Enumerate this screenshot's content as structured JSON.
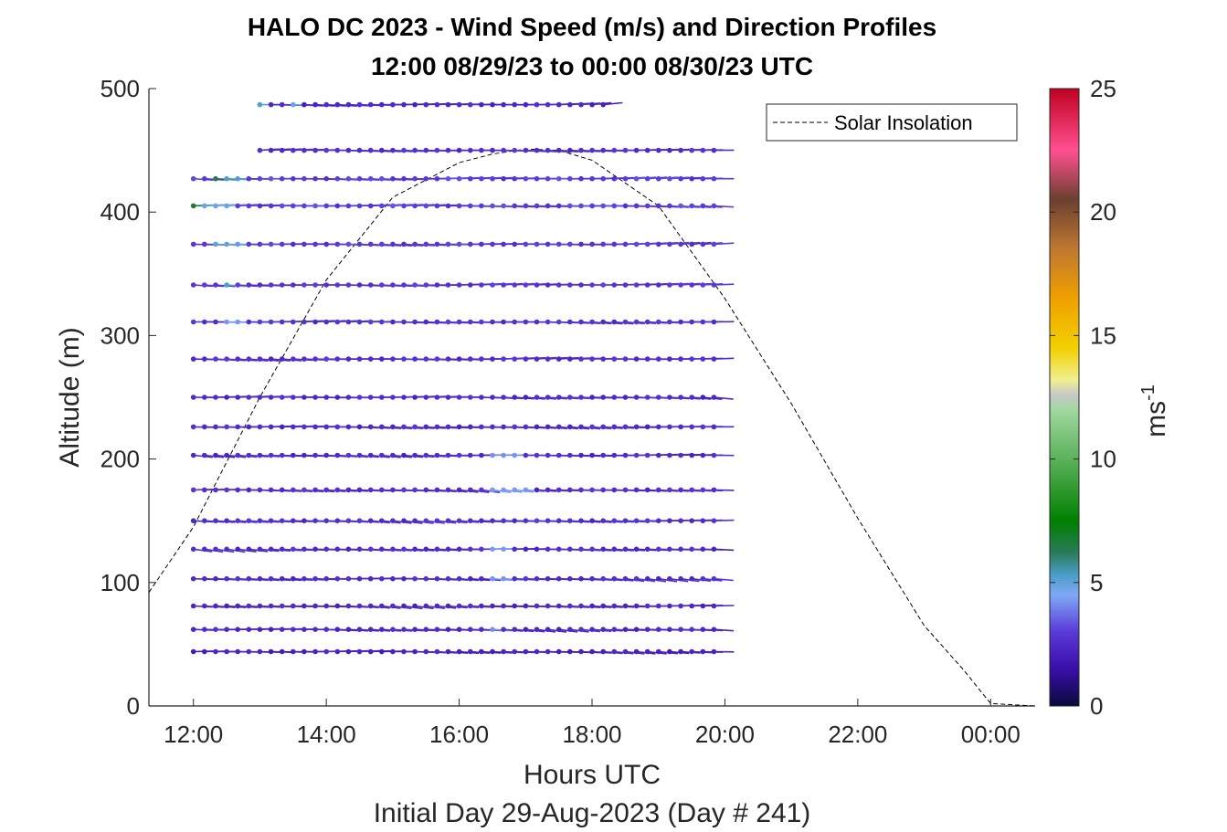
{
  "chart_data": {
    "type": "wind-barb-profile",
    "title": "HALO DC 2023 - Wind Speed (m/s) and Direction Profiles",
    "subtitle": "12:00 08/29/23 to 00:00 08/30/23  UTC",
    "xlabel": "Hours UTC",
    "xlabel2": "Initial Day 29-Aug-2023 (Day # 241)",
    "ylabel": "Altitude (m)",
    "xlim_hours": [
      11.33,
      24.67
    ],
    "ylim": [
      0,
      500
    ],
    "x_ticks": [
      {
        "hour": 12,
        "label": "12:00"
      },
      {
        "hour": 14,
        "label": "14:00"
      },
      {
        "hour": 16,
        "label": "16:00"
      },
      {
        "hour": 18,
        "label": "18:00"
      },
      {
        "hour": 20,
        "label": "20:00"
      },
      {
        "hour": 22,
        "label": "22:00"
      },
      {
        "hour": 24,
        "label": "00:00"
      }
    ],
    "y_ticks": [
      0,
      100,
      200,
      300,
      400,
      500
    ],
    "colorbar": {
      "label": "ms",
      "label_exponent": "-1",
      "range": [
        0,
        25
      ],
      "ticks": [
        0,
        5,
        10,
        15,
        20,
        25
      ],
      "stops": [
        {
          "v": 0,
          "color": "#0a0a3c"
        },
        {
          "v": 1.5,
          "color": "#3a0ea8"
        },
        {
          "v": 3,
          "color": "#5a3ad8"
        },
        {
          "v": 4.5,
          "color": "#7fa8f5"
        },
        {
          "v": 5.3,
          "color": "#4a9ec8"
        },
        {
          "v": 6.2,
          "color": "#2a7a5a"
        },
        {
          "v": 7.5,
          "color": "#008000"
        },
        {
          "v": 9.5,
          "color": "#4aa84a"
        },
        {
          "v": 12,
          "color": "#a0d8a0"
        },
        {
          "v": 12.6,
          "color": "#c8c8c8"
        },
        {
          "v": 13.2,
          "color": "#f0f090"
        },
        {
          "v": 14.5,
          "color": "#f2d000"
        },
        {
          "v": 16.5,
          "color": "#f0a000"
        },
        {
          "v": 18.5,
          "color": "#c07830"
        },
        {
          "v": 20.5,
          "color": "#6b4030"
        },
        {
          "v": 22.5,
          "color": "#ff5090"
        },
        {
          "v": 25,
          "color": "#c00020"
        }
      ]
    },
    "legend": {
      "entries": [
        "Solar Insolation"
      ],
      "location": "top-right"
    },
    "solar_insolation": {
      "style": "dashed",
      "color": "#000000",
      "points": [
        [
          11.33,
          92
        ],
        [
          12,
          145
        ],
        [
          13,
          250
        ],
        [
          14,
          345
        ],
        [
          15,
          412
        ],
        [
          16,
          440
        ],
        [
          16.5,
          447
        ],
        [
          17,
          451
        ],
        [
          17.5,
          450
        ],
        [
          18,
          442
        ],
        [
          19,
          405
        ],
        [
          20,
          330
        ],
        [
          21,
          245
        ],
        [
          22,
          152
        ],
        [
          23,
          65
        ],
        [
          23.58,
          30
        ],
        [
          24.0,
          2
        ],
        [
          24.65,
          0
        ]
      ]
    },
    "wind_profile": {
      "time_start_hour": 12.0,
      "time_step_hour": 0.1667,
      "n_times": 48,
      "levels": [
        {
          "altitude": 44,
          "first": 0,
          "last": 48,
          "speed": 2.2,
          "direction": 265,
          "spread": 0.3
        },
        {
          "altitude": 62,
          "first": 0,
          "last": 48,
          "speed": 2.4,
          "direction": 262,
          "spread": 0.3
        },
        {
          "altitude": 81,
          "first": 0,
          "last": 48,
          "speed": 2.4,
          "direction": 262,
          "spread": 0.3
        },
        {
          "altitude": 103,
          "first": 0,
          "last": 48,
          "speed": 2.5,
          "direction": 260,
          "spread": 0.3
        },
        {
          "altitude": 127,
          "first": 0,
          "last": 48,
          "speed": 2.5,
          "direction": 260,
          "spread": 0.35
        },
        {
          "altitude": 150,
          "first": 0,
          "last": 48,
          "speed": 2.6,
          "direction": 262,
          "spread": 0.35
        },
        {
          "altitude": 175,
          "first": 0,
          "last": 48,
          "speed": 2.6,
          "direction": 262,
          "spread": 0.35
        },
        {
          "altitude": 203,
          "first": 0,
          "last": 48,
          "speed": 2.5,
          "direction": 264,
          "spread": 0.35
        },
        {
          "altitude": 226,
          "first": 0,
          "last": 48,
          "speed": 2.5,
          "direction": 266,
          "spread": 0.35
        },
        {
          "altitude": 250,
          "first": 0,
          "last": 48,
          "speed": 2.5,
          "direction": 266,
          "spread": 0.35
        },
        {
          "altitude": 281,
          "first": 0,
          "last": 48,
          "speed": 2.6,
          "direction": 268,
          "spread": 0.35
        },
        {
          "altitude": 311,
          "first": 0,
          "last": 48,
          "speed": 2.7,
          "direction": 268,
          "spread": 0.35
        },
        {
          "altitude": 341,
          "first": 0,
          "last": 48,
          "speed": 2.8,
          "direction": 270,
          "spread": 0.35
        },
        {
          "altitude": 374,
          "first": 0,
          "last": 48,
          "speed": 2.9,
          "direction": 270,
          "spread": 0.35
        },
        {
          "altitude": 405,
          "first": 0,
          "last": 48,
          "speed": 3.0,
          "direction": 270,
          "spread": 0.4
        },
        {
          "altitude": 427,
          "first": 0,
          "last": 48,
          "speed": 3.0,
          "direction": 270,
          "spread": 0.4
        },
        {
          "altitude": 450,
          "first": 6,
          "last": 48,
          "speed": 2.6,
          "direction": 270,
          "spread": 0.35
        },
        {
          "altitude": 487,
          "first": 6,
          "last": 38,
          "speed": 2.4,
          "direction": 272,
          "spread": 0.3
        }
      ],
      "highlights": [
        {
          "altitude": 405,
          "first": 0,
          "last": 1,
          "speed": 6.8
        },
        {
          "altitude": 405,
          "first": 1,
          "last": 4,
          "speed": 4.8
        },
        {
          "altitude": 427,
          "first": 2,
          "last": 3,
          "speed": 6.4
        },
        {
          "altitude": 427,
          "first": 3,
          "last": 5,
          "speed": 5.2
        },
        {
          "altitude": 374,
          "first": 2,
          "last": 5,
          "speed": 5.0
        },
        {
          "altitude": 341,
          "first": 3,
          "last": 4,
          "speed": 5.3
        },
        {
          "altitude": 311,
          "first": 3,
          "last": 5,
          "speed": 4.3
        },
        {
          "altitude": 487,
          "first": 6,
          "last": 7,
          "speed": 5.2
        },
        {
          "altitude": 487,
          "first": 9,
          "last": 10,
          "speed": 4.8
        },
        {
          "altitude": 175,
          "first": 27,
          "last": 31,
          "speed": 4.3
        },
        {
          "altitude": 203,
          "first": 27,
          "last": 30,
          "speed": 4.2
        },
        {
          "altitude": 127,
          "first": 27,
          "last": 29,
          "speed": 4.3
        },
        {
          "altitude": 103,
          "first": 27,
          "last": 29,
          "speed": 4.2
        },
        {
          "altitude": 62,
          "first": 27,
          "last": 28,
          "speed": 4.2
        }
      ]
    }
  }
}
